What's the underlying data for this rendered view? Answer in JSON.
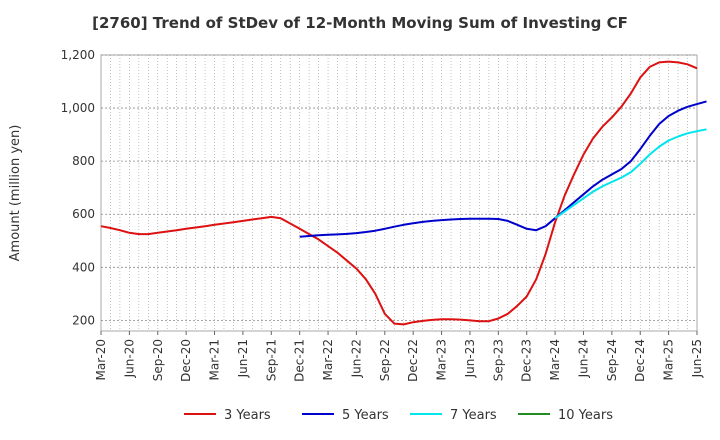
{
  "chart_data": {
    "type": "line",
    "title": "[2760]  Trend of StDev of 12-Month Moving Sum of Investing CF",
    "xlabel": "",
    "ylabel": "Amount (million yen)",
    "ylim": [
      160,
      1200
    ],
    "yticks": [
      200,
      400,
      600,
      800,
      1000,
      1200
    ],
    "ytick_labels": [
      "200",
      "400",
      "600",
      "800",
      "1,000",
      "1,200"
    ],
    "xlim": [
      "Mar-20",
      "Jun-25"
    ],
    "xtick_labels": [
      "Mar-20",
      "Jun-20",
      "Sep-20",
      "Dec-20",
      "Mar-21",
      "Jun-21",
      "Sep-21",
      "Dec-21",
      "Mar-22",
      "Jun-22",
      "Sep-22",
      "Dec-22",
      "Mar-23",
      "Jun-23",
      "Sep-23",
      "Dec-23",
      "Mar-24",
      "Jun-24",
      "Sep-24",
      "Dec-24",
      "Mar-25",
      "Jun-25"
    ],
    "grid": true,
    "legend_position": "bottom",
    "series": [
      {
        "name": "3 Years",
        "color": "#dd1111",
        "points": [
          [
            "Mar-20",
            555
          ],
          [
            "Apr-20",
            548
          ],
          [
            "May-20",
            540
          ],
          [
            "Jun-20",
            530
          ],
          [
            "Jul-20",
            525
          ],
          [
            "Aug-20",
            525
          ],
          [
            "Sep-20",
            530
          ],
          [
            "Oct-20",
            535
          ],
          [
            "Nov-20",
            540
          ],
          [
            "Dec-20",
            545
          ],
          [
            "Jan-21",
            550
          ],
          [
            "Feb-21",
            555
          ],
          [
            "Mar-21",
            560
          ],
          [
            "Apr-21",
            565
          ],
          [
            "May-21",
            570
          ],
          [
            "Jun-21",
            575
          ],
          [
            "Jul-21",
            580
          ],
          [
            "Aug-21",
            585
          ],
          [
            "Sep-21",
            590
          ],
          [
            "Oct-21",
            585
          ],
          [
            "Nov-21",
            565
          ],
          [
            "Dec-21",
            545
          ],
          [
            "Jan-22",
            525
          ],
          [
            "Feb-22",
            505
          ],
          [
            "Mar-22",
            480
          ],
          [
            "Apr-22",
            455
          ],
          [
            "May-22",
            425
          ],
          [
            "Jun-22",
            395
          ],
          [
            "Jul-22",
            355
          ],
          [
            "Aug-22",
            300
          ],
          [
            "Sep-22",
            225
          ],
          [
            "Oct-22",
            188
          ],
          [
            "Nov-22",
            185
          ],
          [
            "Dec-22",
            193
          ],
          [
            "Jan-23",
            198
          ],
          [
            "Feb-23",
            202
          ],
          [
            "Mar-23",
            204
          ],
          [
            "Apr-23",
            204
          ],
          [
            "May-23",
            203
          ],
          [
            "Jun-23",
            200
          ],
          [
            "Jul-23",
            197
          ],
          [
            "Aug-23",
            197
          ],
          [
            "Sep-23",
            207
          ],
          [
            "Oct-23",
            225
          ],
          [
            "Nov-23",
            255
          ],
          [
            "Dec-23",
            290
          ],
          [
            "Jan-24",
            355
          ],
          [
            "Feb-24",
            450
          ],
          [
            "Mar-24",
            570
          ],
          [
            "Apr-24",
            670
          ],
          [
            "May-24",
            750
          ],
          [
            "Jun-24",
            825
          ],
          [
            "Jul-24",
            885
          ],
          [
            "Aug-24",
            930
          ],
          [
            "Sep-24",
            965
          ],
          [
            "Oct-24",
            1005
          ],
          [
            "Nov-24",
            1055
          ],
          [
            "Dec-24",
            1115
          ],
          [
            "Jan-25",
            1155
          ],
          [
            "Feb-25",
            1172
          ],
          [
            "Mar-25",
            1175
          ],
          [
            "Apr-25",
            1172
          ],
          [
            "May-25",
            1165
          ],
          [
            "Jun-25",
            1150
          ]
        ]
      },
      {
        "name": "5 Years",
        "color": "#0000cc",
        "points": [
          [
            "Dec-21",
            515
          ],
          [
            "Jan-22",
            518
          ],
          [
            "Feb-22",
            521
          ],
          [
            "Mar-22",
            523
          ],
          [
            "Apr-22",
            524
          ],
          [
            "May-22",
            526
          ],
          [
            "Jun-22",
            529
          ],
          [
            "Jul-22",
            533
          ],
          [
            "Aug-22",
            538
          ],
          [
            "Sep-22",
            545
          ],
          [
            "Oct-22",
            553
          ],
          [
            "Nov-22",
            560
          ],
          [
            "Dec-22",
            566
          ],
          [
            "Jan-23",
            571
          ],
          [
            "Feb-23",
            575
          ],
          [
            "Mar-23",
            578
          ],
          [
            "Apr-23",
            580
          ],
          [
            "May-23",
            582
          ],
          [
            "Jun-23",
            583
          ],
          [
            "Jul-23",
            583
          ],
          [
            "Aug-23",
            583
          ],
          [
            "Sep-23",
            582
          ],
          [
            "Oct-23",
            575
          ],
          [
            "Nov-23",
            560
          ],
          [
            "Dec-23",
            545
          ],
          [
            "Jan-24",
            540
          ],
          [
            "Feb-24",
            555
          ],
          [
            "Mar-24",
            585
          ],
          [
            "Apr-24",
            615
          ],
          [
            "May-24",
            645
          ],
          [
            "Jun-24",
            675
          ],
          [
            "Jul-24",
            705
          ],
          [
            "Aug-24",
            730
          ],
          [
            "Sep-24",
            750
          ],
          [
            "Oct-24",
            770
          ],
          [
            "Nov-24",
            800
          ],
          [
            "Dec-24",
            845
          ],
          [
            "Jan-25",
            895
          ],
          [
            "Feb-25",
            940
          ],
          [
            "Mar-25",
            970
          ],
          [
            "Apr-25",
            990
          ],
          [
            "May-25",
            1005
          ],
          [
            "Jun-25",
            1015
          ],
          [
            "Jul-25",
            1025
          ]
        ]
      },
      {
        "name": "7 Years",
        "color": "#00e5ee",
        "points": [
          [
            "Mar-24",
            585
          ],
          [
            "Apr-24",
            610
          ],
          [
            "May-24",
            635
          ],
          [
            "Jun-24",
            660
          ],
          [
            "Jul-24",
            685
          ],
          [
            "Aug-24",
            705
          ],
          [
            "Sep-24",
            722
          ],
          [
            "Oct-24",
            738
          ],
          [
            "Nov-24",
            758
          ],
          [
            "Dec-24",
            790
          ],
          [
            "Jan-25",
            825
          ],
          [
            "Feb-25",
            855
          ],
          [
            "Mar-25",
            878
          ],
          [
            "Apr-25",
            893
          ],
          [
            "May-25",
            905
          ],
          [
            "Jun-25",
            913
          ],
          [
            "Jul-25",
            920
          ]
        ]
      },
      {
        "name": "10 Years",
        "color": "#228b22",
        "points": []
      }
    ]
  }
}
